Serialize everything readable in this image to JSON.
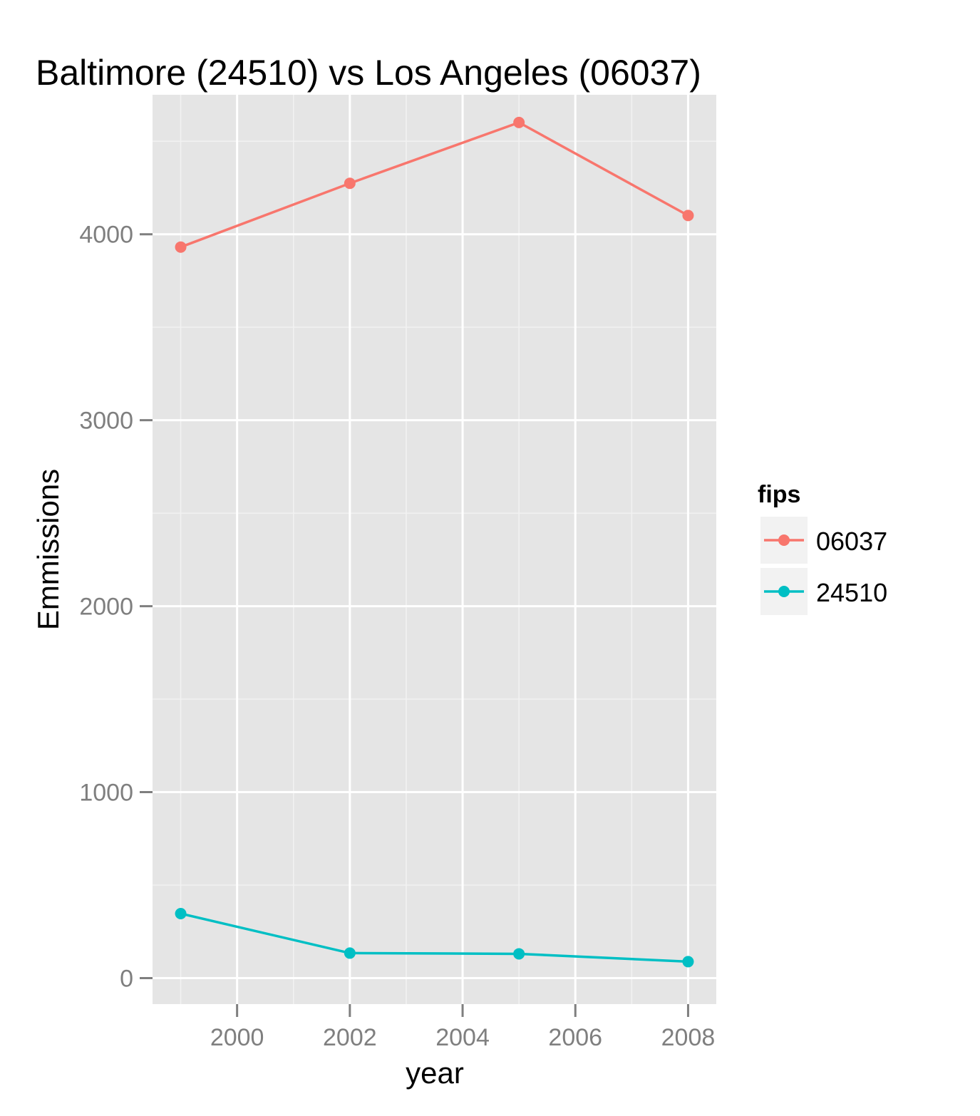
{
  "chart_data": {
    "type": "line",
    "title": "Baltimore (24510) vs Los Angeles (06037)",
    "xlabel": "year",
    "ylabel": "Emmissions",
    "x": [
      1999,
      2002,
      2005,
      2008
    ],
    "xlim": [
      1998.5,
      2008.5
    ],
    "ylim": [
      -140,
      4750
    ],
    "x_ticks": [
      2000,
      2002,
      2004,
      2006,
      2008
    ],
    "x_tick_labels": [
      "2000",
      "2002",
      "2004",
      "2006",
      "2008"
    ],
    "y_ticks": [
      0,
      1000,
      2000,
      3000,
      4000
    ],
    "y_tick_labels": [
      "0",
      "1000",
      "2000",
      "3000",
      "4000"
    ],
    "grid": true,
    "legend": {
      "title": "fips",
      "placement": "right"
    },
    "series": [
      {
        "name": "06037",
        "color": "#F8766D",
        "values": [
          3931,
          4274,
          4601,
          4101
        ]
      },
      {
        "name": "24510",
        "color": "#00BFC4",
        "values": [
          346.8,
          134.3,
          130.4,
          88.3
        ]
      }
    ]
  }
}
